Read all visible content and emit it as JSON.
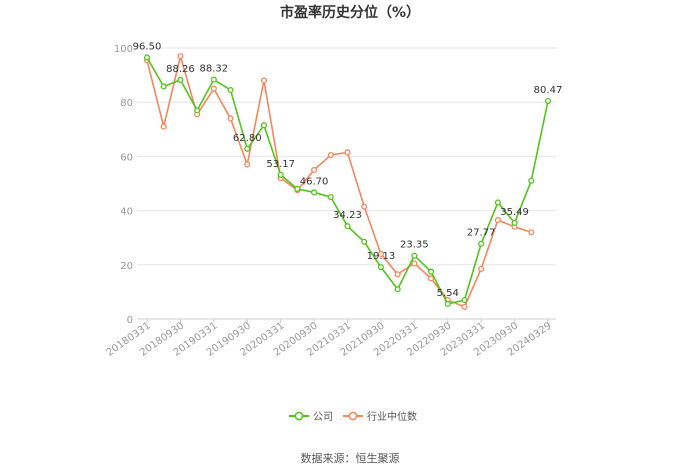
{
  "chart_data": {
    "type": "line",
    "title": "市盈率历史分位（%）",
    "source": "数据来源：恒生聚源",
    "ylim": [
      0,
      100
    ],
    "yticks": [
      0,
      20,
      40,
      60,
      80,
      100
    ],
    "grid": true,
    "legend_position": "bottom",
    "xtick_labels": [
      "20180331",
      "20180930",
      "20190331",
      "20190930",
      "20200331",
      "20200930",
      "20210331",
      "20210930",
      "20220331",
      "20220930",
      "20230331",
      "20230930",
      "20240329"
    ],
    "x": [
      "20180331",
      "20180630",
      "20180930",
      "20181231",
      "20190331",
      "20190630",
      "20190930",
      "20191231",
      "20200331",
      "20200630",
      "20200930",
      "20201231",
      "20210331",
      "20210630",
      "20210930",
      "20211231",
      "20220331",
      "20220630",
      "20220930",
      "20221231",
      "20230331",
      "20230630",
      "20230930",
      "20231231",
      "20240329"
    ],
    "series": [
      {
        "name": "公司",
        "color": "#52c41a",
        "values": [
          96.5,
          85.8,
          88.26,
          77.0,
          88.32,
          84.5,
          62.8,
          71.5,
          53.17,
          48.0,
          46.7,
          45.0,
          34.23,
          28.5,
          19.13,
          11.0,
          23.35,
          17.5,
          5.54,
          7.0,
          27.77,
          43.0,
          35.49,
          51.0,
          80.47
        ]
      },
      {
        "name": "行业中位数",
        "color": "#f5875c",
        "values": [
          95.5,
          71.0,
          97.0,
          75.5,
          85.0,
          74.0,
          57.0,
          88.0,
          52.0,
          47.5,
          55.0,
          60.5,
          61.5,
          41.5,
          24.0,
          16.5,
          20.5,
          15.0,
          7.0,
          4.5,
          18.5,
          36.5,
          34.0,
          32.0,
          null
        ]
      }
    ],
    "data_labels": [
      {
        "index": 0,
        "text": "96.50"
      },
      {
        "index": 2,
        "text": "88.26"
      },
      {
        "index": 4,
        "text": "88.32"
      },
      {
        "index": 6,
        "text": "62.80"
      },
      {
        "index": 8,
        "text": "53.17"
      },
      {
        "index": 10,
        "text": "46.70"
      },
      {
        "index": 12,
        "text": "34.23"
      },
      {
        "index": 14,
        "text": "19.13"
      },
      {
        "index": 16,
        "text": "23.35"
      },
      {
        "index": 18,
        "text": "5.54"
      },
      {
        "index": 20,
        "text": "27.77"
      },
      {
        "index": 22,
        "text": "35.49"
      },
      {
        "index": 24,
        "text": "80.47"
      }
    ]
  }
}
